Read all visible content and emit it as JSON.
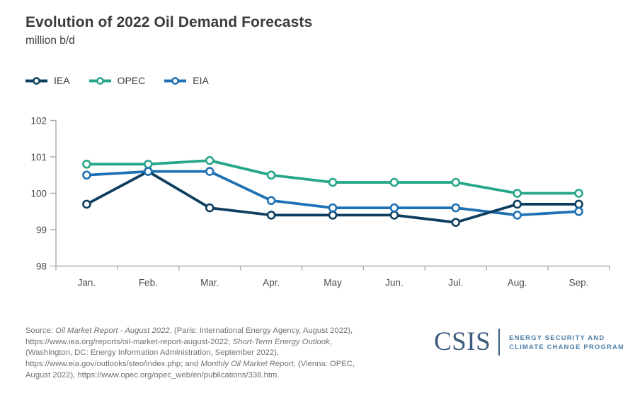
{
  "header": {
    "title": "Evolution of 2022 Oil Demand Forecasts",
    "subtitle": "million b/d"
  },
  "chart_data": {
    "type": "line",
    "title": "Evolution of 2022 Oil Demand Forecasts",
    "ylabel": "million b/d",
    "categories": [
      "Jan.",
      "Feb.",
      "Mar.",
      "Apr.",
      "May",
      "Jun.",
      "Jul.",
      "Aug.",
      "Sep."
    ],
    "series": [
      {
        "name": "IEA",
        "color": "#0e3e5f",
        "values": [
          99.7,
          100.6,
          99.6,
          99.4,
          99.4,
          99.4,
          99.2,
          99.7,
          99.7
        ]
      },
      {
        "name": "OPEC",
        "color": "#26a68a",
        "values": [
          100.8,
          100.8,
          100.9,
          100.5,
          100.3,
          100.3,
          100.3,
          100.0,
          100.0
        ]
      },
      {
        "name": "EIA",
        "color": "#1f71b4",
        "values": [
          100.5,
          100.6,
          100.6,
          99.8,
          99.6,
          99.6,
          99.6,
          99.4,
          99.5
        ]
      }
    ],
    "ylim": [
      98,
      102
    ],
    "yticks": [
      98,
      99,
      100,
      101,
      102
    ],
    "grid": false,
    "legend_position": "top-left",
    "axis_color": "#b0b0b0",
    "tick_label_color": "#4a4a4a"
  },
  "footer": {
    "source_lines": [
      [
        {
          "t": "Source: ",
          "i": false
        },
        {
          "t": "Oil Market Report - August 2022",
          "i": true
        },
        {
          "t": ", (Paris: International Energy Agency, August 2022),",
          "i": false
        }
      ],
      [
        {
          "t": "https://www.iea.org/reports/oil-market-report-august-2022; ",
          "i": false
        },
        {
          "t": "Short-Term Energy Outlook",
          "i": true
        },
        {
          "t": ",",
          "i": false
        }
      ],
      [
        {
          "t": "(Washington, DC: Energy Information Administration, September 2022),",
          "i": false
        }
      ],
      [
        {
          "t": "https://www.eia.gov/outlooks/steo/index.php; and ",
          "i": false
        },
        {
          "t": "Monthly Oil Market Report",
          "i": true
        },
        {
          "t": ", (Vienna: OPEC,",
          "i": false
        }
      ],
      [
        {
          "t": "August 2022), https://www.opec.org/opec_web/en/publications/338.htm.",
          "i": false
        }
      ]
    ],
    "logo": {
      "wordmark": "CSIS",
      "program_lines": [
        "ENERGY SECURITY AND",
        "CLIMATE CHANGE PROGRAM"
      ],
      "wordmark_color": "#3d5c7e",
      "program_color": "#4b7ea8"
    }
  }
}
